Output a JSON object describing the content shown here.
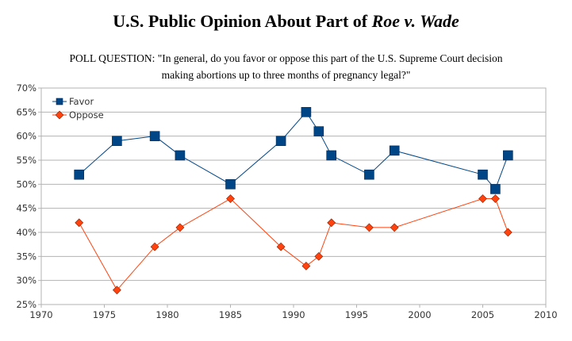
{
  "chart_data": {
    "type": "line",
    "title_prefix": "U.S. Public Opinion About Part of ",
    "title_italic": "Roe v. Wade",
    "subtitle_line1": "POLL QUESTION: \"In general, do you favor or oppose this part of the U.S. Supreme Court decision",
    "subtitle_line2": "making abortions up to three months of pregnancy legal?\"",
    "xlim": [
      1970,
      2010
    ],
    "ylim": [
      25,
      70
    ],
    "xticks": [
      1970,
      1975,
      1980,
      1985,
      1990,
      1995,
      2000,
      2005,
      2010
    ],
    "yticks": [
      "25%",
      "30%",
      "35%",
      "40%",
      "45%",
      "50%",
      "55%",
      "60%",
      "65%",
      "70%"
    ],
    "grid": "horizontal",
    "legend_position": "top-left",
    "series": [
      {
        "name": "Favor",
        "color": "#004586",
        "marker": "square",
        "x": [
          1973,
          1976,
          1979,
          1981,
          1985,
          1989,
          1991,
          1992,
          1993,
          1996,
          1998,
          2005,
          2006,
          2007
        ],
        "y": [
          52,
          59,
          60,
          56,
          50,
          59,
          65,
          61,
          56,
          52,
          57,
          52,
          49,
          56
        ]
      },
      {
        "name": "Oppose",
        "color": "#ff420e",
        "marker": "diamond",
        "x": [
          1973,
          1976,
          1979,
          1981,
          1985,
          1989,
          1991,
          1992,
          1993,
          1996,
          1998,
          2005,
          2006,
          2007
        ],
        "y": [
          42,
          28,
          37,
          41,
          47,
          37,
          33,
          35,
          42,
          41,
          41,
          47,
          47,
          40
        ]
      }
    ]
  }
}
